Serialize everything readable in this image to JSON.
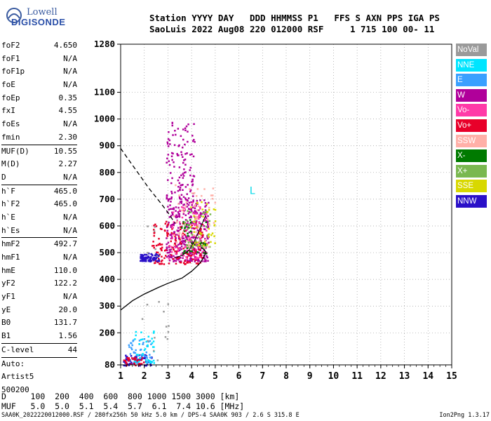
{
  "logo": {
    "line1": "Lowell",
    "line2": "DIGISONDE"
  },
  "header": {
    "line1": "Station YYYY DAY   DDD HHMMSS P1   FFS S AXN PPS IGA PS",
    "line2": "SaoLuis 2022 Aug08 220 012000 RSF     1 715 100 00- 11"
  },
  "params": [
    {
      "k": "foF2",
      "v": "4.650"
    },
    {
      "k": "foF1",
      "v": "N/A"
    },
    {
      "k": "foF1p",
      "v": "N/A"
    },
    {
      "k": "foE",
      "v": "N/A"
    },
    {
      "k": "foEp",
      "v": "0.35"
    },
    {
      "k": "fxI",
      "v": "4.55"
    },
    {
      "k": "foEs",
      "v": "N/A"
    },
    {
      "k": "fmin",
      "v": "2.30"
    },
    {
      "k": "MUF(D)",
      "v": "10.55"
    },
    {
      "k": "M(D)",
      "v": "2.27"
    },
    {
      "k": "D",
      "v": "N/A"
    },
    {
      "k": "h`F",
      "v": "465.0"
    },
    {
      "k": "h`F2",
      "v": "465.0"
    },
    {
      "k": "h`E",
      "v": "N/A"
    },
    {
      "k": "h`Es",
      "v": "N/A"
    },
    {
      "k": "hmF2",
      "v": "492.7"
    },
    {
      "k": "hmF1",
      "v": "N/A"
    },
    {
      "k": "hmE",
      "v": "110.0"
    },
    {
      "k": "yF2",
      "v": "122.2"
    },
    {
      "k": "yF1",
      "v": "N/A"
    },
    {
      "k": "yE",
      "v": "20.0"
    },
    {
      "k": "B0",
      "v": "131.7"
    },
    {
      "k": "B1",
      "v": "1.56"
    },
    {
      "k": "C-level",
      "v": "44"
    }
  ],
  "autoscale": {
    "l1": "Auto:",
    "l2": "Artist5",
    "l3": "500200"
  },
  "legend": [
    {
      "label": "NoVal",
      "color": "#9a9a9a"
    },
    {
      "label": "NNE",
      "color": "#00e5ff"
    },
    {
      "label": "E",
      "color": "#3aa0ff"
    },
    {
      "label": "W",
      "color": "#b0009a"
    },
    {
      "label": "Vo-",
      "color": "#ff3aa8"
    },
    {
      "label": "Vo+",
      "color": "#e8002a"
    },
    {
      "label": "SSW",
      "color": "#ffb0a8"
    },
    {
      "label": "X-",
      "color": "#007a00"
    },
    {
      "label": "X+",
      "color": "#7ab850"
    },
    {
      "label": "SSE",
      "color": "#d8d800"
    },
    {
      "label": "NNW",
      "color": "#2a10c8"
    }
  ],
  "bottom_table": {
    "row1": "D     100  200  400  600  800 1000 1500 3000 [km]",
    "row2": "MUF   5.0  5.0  5.1  5.4  5.7  6.1  7.4 10.6 [MHz]"
  },
  "footer": {
    "left": "SAA0K_2022220012000.RSF / 280fx256h 50 kHz 5.0 km / DPS-4 SAA0K 903 / 2.6 S 315.8 E",
    "right": "Ion2Png 1.3.17"
  },
  "chart_data": {
    "type": "scatter",
    "title": "",
    "xlabel": "",
    "ylabel": "",
    "xlim": [
      1,
      15
    ],
    "ylim": [
      80,
      1280
    ],
    "x_ticks": [
      1,
      2,
      3,
      4,
      5,
      6,
      7,
      8,
      9,
      10,
      11,
      12,
      13,
      14,
      15
    ],
    "y_ticks": [
      80,
      200,
      300,
      400,
      500,
      600,
      700,
      800,
      900,
      1000,
      1100,
      1280
    ],
    "grid": true,
    "legend_position": "right",
    "annotation": "L",
    "annotation_pos": {
      "x": 6.45,
      "y": 720
    },
    "profile_curve": [
      [
        1.0,
        285
      ],
      [
        1.5,
        320
      ],
      [
        2.0,
        345
      ],
      [
        2.6,
        370
      ],
      [
        3.0,
        385
      ],
      [
        3.6,
        405
      ],
      [
        4.0,
        430
      ],
      [
        4.3,
        455
      ],
      [
        4.5,
        480
      ],
      [
        4.6,
        500
      ],
      [
        4.55,
        510
      ],
      [
        4.4,
        520
      ]
    ],
    "dashed_curve": [
      [
        1.0,
        890
      ],
      [
        1.4,
        840
      ],
      [
        1.8,
        790
      ],
      [
        2.2,
        740
      ],
      [
        2.7,
        685
      ],
      [
        3.0,
        650
      ],
      [
        3.3,
        610
      ]
    ],
    "trace_curve": [
      [
        3.3,
        480
      ],
      [
        3.6,
        490
      ],
      [
        3.9,
        510
      ],
      [
        4.1,
        540
      ],
      [
        4.3,
        580
      ],
      [
        4.5,
        620
      ],
      [
        4.6,
        640
      ]
    ],
    "clusters": [
      {
        "series": "W",
        "x": [
          2.9,
          4.7
        ],
        "y": [
          470,
          700
        ],
        "n": 380
      },
      {
        "series": "W",
        "x": [
          2.9,
          4.1
        ],
        "y": [
          700,
          1000
        ],
        "n": 120
      },
      {
        "series": "Vo+",
        "x": [
          2.3,
          4.5
        ],
        "y": [
          460,
          620
        ],
        "n": 160
      },
      {
        "series": "Vo-",
        "x": [
          3.0,
          4.6
        ],
        "y": [
          480,
          700
        ],
        "n": 80
      },
      {
        "series": "X-",
        "x": [
          3.5,
          4.6
        ],
        "y": [
          500,
          640
        ],
        "n": 40
      },
      {
        "series": "X+",
        "x": [
          3.6,
          4.8
        ],
        "y": [
          520,
          660
        ],
        "n": 40
      },
      {
        "series": "SSE",
        "x": [
          3.9,
          5.0
        ],
        "y": [
          530,
          700
        ],
        "n": 40
      },
      {
        "series": "SSW",
        "x": [
          3.2,
          5.0
        ],
        "y": [
          520,
          760
        ],
        "n": 60
      },
      {
        "series": "NNW",
        "x": [
          1.8,
          2.6
        ],
        "y": [
          470,
          500
        ],
        "n": 90
      },
      {
        "series": "NNW",
        "x": [
          1.1,
          2.3
        ],
        "y": [
          80,
          120
        ],
        "n": 70
      },
      {
        "series": "E",
        "x": [
          1.3,
          2.3
        ],
        "y": [
          90,
          180
        ],
        "n": 50
      },
      {
        "series": "NNE",
        "x": [
          1.5,
          2.4
        ],
        "y": [
          90,
          210
        ],
        "n": 40
      },
      {
        "series": "Vo+",
        "x": [
          1.1,
          2.0
        ],
        "y": [
          80,
          110
        ],
        "n": 30
      },
      {
        "series": "NoVal",
        "x": [
          1.8,
          3.0
        ],
        "y": [
          100,
          620
        ],
        "n": 20
      }
    ]
  }
}
